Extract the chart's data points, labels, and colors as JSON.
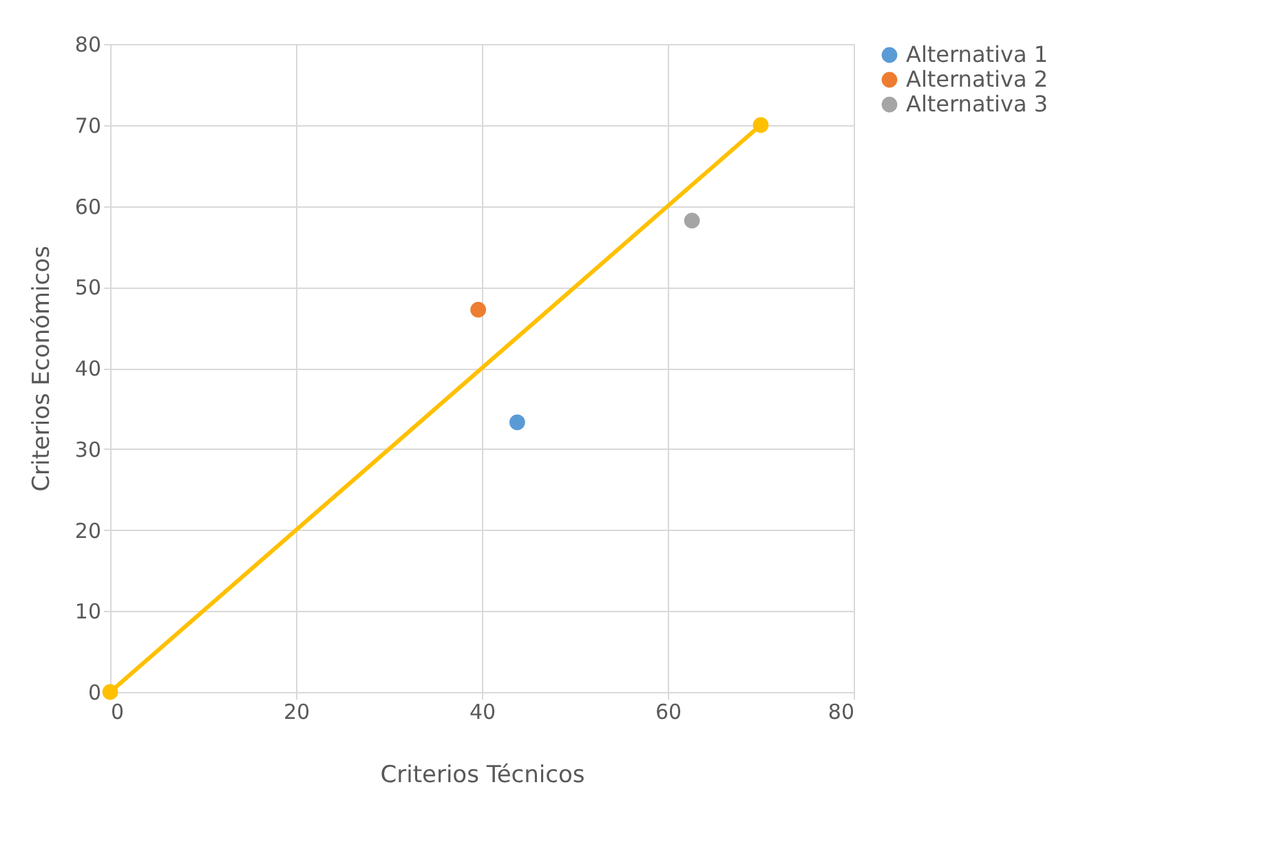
{
  "chart_data": {
    "type": "scatter",
    "xlabel": "Criterios Técnicos",
    "ylabel": "Criterios Económicos",
    "xlim": [
      0,
      80
    ],
    "ylim": [
      0,
      80
    ],
    "xticks": [
      0,
      20,
      40,
      60,
      80
    ],
    "yticks": [
      0,
      10,
      20,
      30,
      40,
      50,
      60,
      70,
      80
    ],
    "grid": true,
    "legend": "right",
    "marker": "circle",
    "series": [
      {
        "name": "Alternativa 1",
        "color": "#5b9bd5",
        "x": [
          43.8
        ],
        "values": [
          33.3
        ]
      },
      {
        "name": "Alternativa 2",
        "color": "#ed7d31",
        "x": [
          39.6
        ],
        "values": [
          47.2
        ]
      },
      {
        "name": "Alternativa 3",
        "color": "#a5a5a5",
        "x": [
          62.6
        ],
        "values": [
          58.2
        ]
      },
      {
        "type": "line",
        "color": "#ffc000",
        "x": [
          0,
          70
        ],
        "values": [
          0,
          70
        ]
      }
    ]
  }
}
